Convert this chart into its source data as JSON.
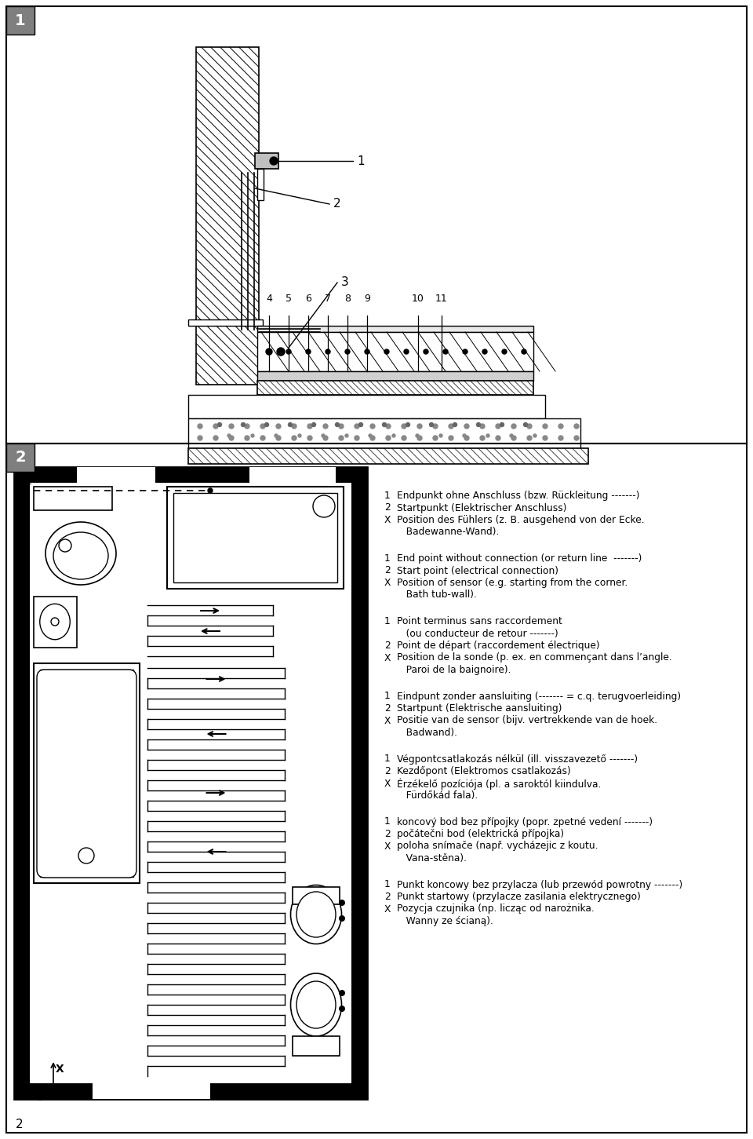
{
  "bg_color": "#ffffff",
  "text_blocks": [
    {
      "lines": [
        [
          "1",
          "Endpunkt ohne Anschluss (bzw. Rückleitung -------)"
        ],
        [
          "2",
          "Startpunkt (Elektrischer Anschluss)"
        ],
        [
          "X",
          "Position des Fühlers (z. B. ausgehend von der Ecke."
        ],
        [
          "",
          "   Badewanne-Wand)."
        ]
      ]
    },
    {
      "lines": [
        [
          "1",
          "End point without connection (or return line  -------)"
        ],
        [
          "2",
          "Start point (electrical connection)"
        ],
        [
          "X",
          "Position of sensor (e.g. starting from the corner."
        ],
        [
          "",
          "   Bath tub-wall)."
        ]
      ]
    },
    {
      "lines": [
        [
          "1",
          "Point terminus sans raccordement"
        ],
        [
          "",
          "   (ou conducteur de retour -------)"
        ],
        [
          "2",
          "Point de départ (raccordement électrique)"
        ],
        [
          "X",
          "Position de la sonde (p. ex. en commençant dans l’angle."
        ],
        [
          "",
          "   Paroi de la baignoire)."
        ]
      ]
    },
    {
      "lines": [
        [
          "1",
          "Eindpunt zonder aansluiting (------- = c.q. terugvoerleiding)"
        ],
        [
          "2",
          "Startpunt (Elektrische aansluiting)"
        ],
        [
          "X",
          "Positie van de sensor (bijv. vertrekkende van de hoek."
        ],
        [
          "",
          "   Badwand)."
        ]
      ]
    },
    {
      "lines": [
        [
          "1",
          "Végpontcsatlakozás nélkül (ill. visszavezető -------)"
        ],
        [
          "2",
          "Kezdőpont (Elektromos csatlakozás)"
        ],
        [
          "X",
          "Érzékelő pozíciója (pl. a saroktól kiindulva."
        ],
        [
          "",
          "   Fürdőkád fala)."
        ]
      ]
    },
    {
      "lines": [
        [
          "1",
          "koncový bod bez přípojky (popr. zpetné vedení -------)"
        ],
        [
          "2",
          "počátečni bod (elektrická přípojka)"
        ],
        [
          "X",
          "poloha snímače (např. vycházejic z koutu."
        ],
        [
          "",
          "   Vana-stěna)."
        ]
      ]
    },
    {
      "lines": [
        [
          "1",
          "Punkt koncowy bez przylacza (lub przewód powrotny -------)"
        ],
        [
          "2",
          "Punkt startowy (przylacze zasilania elektrycznego)"
        ],
        [
          "X",
          "Pozycja czujnika (np. licząc od narożnika."
        ],
        [
          "",
          "   Wanny ze ścianą)."
        ]
      ]
    }
  ]
}
